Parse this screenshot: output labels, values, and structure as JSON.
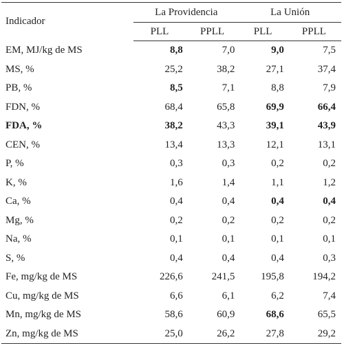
{
  "header": {
    "indicator_label": "Indicador",
    "groups": [
      "La Providencia",
      "La Unión"
    ],
    "subcolumns": [
      "PLL",
      "PPLL",
      "PLL",
      "PPLL"
    ]
  },
  "rows": [
    {
      "label": "EM, MJ/kg de MS",
      "values": [
        "8,8",
        "7,0",
        "9,0",
        "7,5"
      ],
      "label_bold": false,
      "bold": [
        true,
        false,
        true,
        false
      ]
    },
    {
      "label": "MS, %",
      "values": [
        "25,2",
        "38,2",
        "27,1",
        "37,4"
      ],
      "label_bold": false,
      "bold": [
        false,
        false,
        false,
        false
      ]
    },
    {
      "label": "PB, %",
      "values": [
        "8,5",
        "7,1",
        "8,8",
        "7,9"
      ],
      "label_bold": false,
      "bold": [
        true,
        false,
        false,
        false
      ]
    },
    {
      "label": "FDN, %",
      "values": [
        "68,4",
        "65,8",
        "69,9",
        "66,4"
      ],
      "label_bold": false,
      "bold": [
        false,
        false,
        true,
        true
      ]
    },
    {
      "label": "FDA, %",
      "values": [
        "38,2",
        "43,3",
        "39,1",
        "43,9"
      ],
      "label_bold": true,
      "bold": [
        true,
        false,
        true,
        true
      ]
    },
    {
      "label": "CEN, %",
      "values": [
        "13,4",
        "13,3",
        "12,1",
        "13,1"
      ],
      "label_bold": false,
      "bold": [
        false,
        false,
        false,
        false
      ]
    },
    {
      "label": "P, %",
      "values": [
        "0,3",
        "0,3",
        "0,2",
        "0,2"
      ],
      "label_bold": false,
      "bold": [
        false,
        false,
        false,
        false
      ]
    },
    {
      "label": "K, %",
      "values": [
        "1,6",
        "1,4",
        "1,1",
        "1,2"
      ],
      "label_bold": false,
      "bold": [
        false,
        false,
        false,
        false
      ]
    },
    {
      "label": "Ca, %",
      "values": [
        "0,4",
        "0,4",
        "0,4",
        "0,4"
      ],
      "label_bold": false,
      "bold": [
        false,
        false,
        true,
        true
      ]
    },
    {
      "label": "Mg, %",
      "values": [
        "0,2",
        "0,2",
        "0,2",
        "0,2"
      ],
      "label_bold": false,
      "bold": [
        false,
        false,
        false,
        false
      ]
    },
    {
      "label": "Na, %",
      "values": [
        "0,1",
        "0,1",
        "0,1",
        "0,1"
      ],
      "label_bold": false,
      "bold": [
        false,
        false,
        false,
        false
      ]
    },
    {
      "label": "S, %",
      "values": [
        "0,4",
        "0,4",
        "0,4",
        "0,3"
      ],
      "label_bold": false,
      "bold": [
        false,
        false,
        false,
        false
      ]
    },
    {
      "label": "Fe, mg/kg de MS",
      "values": [
        "226,6",
        "241,5",
        "195,8",
        "194,2"
      ],
      "label_bold": false,
      "bold": [
        false,
        false,
        false,
        false
      ]
    },
    {
      "label": "Cu, mg/kg de MS",
      "values": [
        "6,6",
        "6,1",
        "6,2",
        "7,4"
      ],
      "label_bold": false,
      "bold": [
        false,
        false,
        false,
        false
      ]
    },
    {
      "label": "Mn, mg/kg de MS",
      "values": [
        "58,6",
        "60,9",
        "68,6",
        "65,5"
      ],
      "label_bold": false,
      "bold": [
        false,
        false,
        true,
        false
      ]
    },
    {
      "label": "Zn, mg/kg de MS",
      "values": [
        "25,0",
        "26,2",
        "27,8",
        "29,2"
      ],
      "label_bold": false,
      "bold": [
        false,
        false,
        false,
        false
      ]
    }
  ]
}
